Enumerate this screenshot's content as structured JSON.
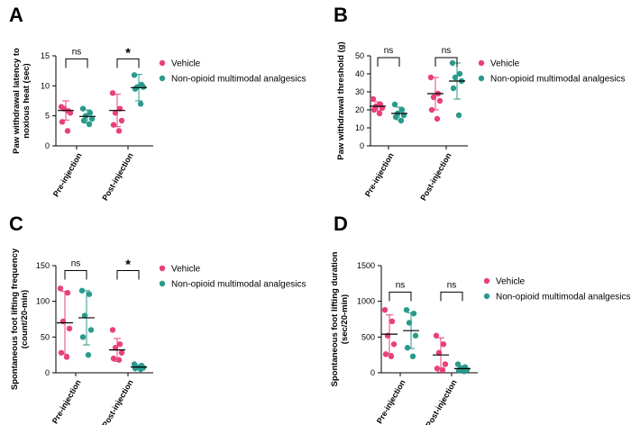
{
  "colors": {
    "vehicle": "#e8407a",
    "nomma": "#2a9a8c"
  },
  "chart_data": [
    {
      "type": "scatter",
      "panel": "A",
      "ylabel": [
        "Paw withdrawal latency to",
        "noxious heat (sec)"
      ],
      "ylim": [
        0,
        15
      ],
      "yticks": [
        0,
        5,
        10,
        15
      ],
      "categories": [
        "Pre-injection",
        "Post-injection"
      ],
      "series": [
        {
          "name": "Vehicle",
          "color": "vehicle",
          "points": [
            [
              6.5,
              5.8,
              6.2,
              5.5,
              4.0,
              2.5
            ],
            [
              8.8,
              6.2,
              5.5,
              4.2,
              3.5,
              2.5
            ]
          ],
          "mean": [
            5.9,
            5.9
          ],
          "sd": [
            1.6,
            2.7
          ]
        },
        {
          "name": "Non-opioid multimodal analgesics",
          "color": "nomma",
          "points": [
            [
              6.2,
              5.5,
              5.0,
              4.5,
              4.2,
              3.6
            ],
            [
              11.8,
              10.2,
              9.8,
              9.8,
              9.5,
              7.0
            ]
          ],
          "mean": [
            4.9,
            9.7
          ],
          "sd": [
            1.1,
            2.2
          ]
        }
      ],
      "comparisons": [
        {
          "group": 0,
          "label": "ns",
          "y": 14.5
        },
        {
          "group": 1,
          "label": "*",
          "y": 14.5
        }
      ]
    },
    {
      "type": "scatter",
      "panel": "B",
      "ylabel": [
        "Paw withdrawal threshold (g)"
      ],
      "ylim": [
        0,
        50
      ],
      "yticks": [
        0,
        10,
        20,
        30,
        40,
        50
      ],
      "categories": [
        "Pre-injection",
        "Post-injection"
      ],
      "series": [
        {
          "name": "Vehicle",
          "color": "vehicle",
          "points": [
            [
              26,
              23,
              22,
              21,
              20,
              18
            ],
            [
              38,
              29,
              27,
              25,
              20,
              15
            ]
          ],
          "mean": [
            22,
            29
          ],
          "sd": [
            2.5,
            9
          ]
        },
        {
          "name": "Non-opioid multimodal analgesics",
          "color": "nomma",
          "points": [
            [
              23,
              20,
              18,
              17,
              16,
              14
            ],
            [
              46,
              40,
              38,
              36,
              32,
              17
            ]
          ],
          "mean": [
            18,
            36
          ],
          "sd": [
            3.5,
            10
          ]
        }
      ],
      "comparisons": [
        {
          "group": 0,
          "label": "ns",
          "y": 49
        },
        {
          "group": 1,
          "label": "ns",
          "y": 49
        }
      ]
    },
    {
      "type": "scatter",
      "panel": "C",
      "ylabel": [
        "Spontaneous foot lifting frequency",
        "(count/20-min)"
      ],
      "ylim": [
        0,
        150
      ],
      "yticks": [
        0,
        50,
        100,
        150
      ],
      "categories": [
        "Pre-injection",
        "Post-injection"
      ],
      "series": [
        {
          "name": "Vehicle",
          "color": "vehicle",
          "points": [
            [
              118,
              112,
              72,
              62,
              28,
              22
            ],
            [
              60,
              40,
              35,
              28,
              20,
              18
            ]
          ],
          "mean": [
            70,
            32
          ],
          "sd": [
            44,
            16
          ]
        },
        {
          "name": "Non-opioid multimodal analgesics",
          "color": "nomma",
          "points": [
            [
              115,
              110,
              80,
              60,
              50,
              25
            ],
            [
              12,
              10,
              8,
              7,
              6,
              5
            ]
          ],
          "mean": [
            77,
            8
          ],
          "sd": [
            38,
            3
          ]
        }
      ],
      "comparisons": [
        {
          "group": 0,
          "label": "ns",
          "y": 143
        },
        {
          "group": 1,
          "label": "*",
          "y": 143
        }
      ]
    },
    {
      "type": "scatter",
      "panel": "D",
      "ylabel": [
        "Spontaneous foot lifting duration",
        "(sec/20-min)"
      ],
      "ylim": [
        0,
        1500
      ],
      "yticks": [
        0,
        500,
        1000,
        1500
      ],
      "categories": [
        "Pre-injection",
        "Post-injection"
      ],
      "series": [
        {
          "name": "Vehicle",
          "color": "vehicle",
          "points": [
            [
              880,
              720,
              520,
              400,
              260,
              230
            ],
            [
              520,
              400,
              280,
              120,
              60,
              40
            ]
          ],
          "mean": [
            540,
            250
          ],
          "sd": [
            270,
            240
          ]
        },
        {
          "name": "Non-opioid multimodal analgesics",
          "color": "nomma",
          "points": [
            [
              880,
              830,
              700,
              520,
              350,
              230
            ],
            [
              120,
              80,
              60,
              40,
              30,
              20
            ]
          ],
          "mean": [
            590,
            58
          ],
          "sd": [
            250,
            40
          ]
        }
      ],
      "comparisons": [
        {
          "group": 0,
          "label": "ns",
          "y": 1130
        },
        {
          "group": 1,
          "label": "ns",
          "y": 1130
        }
      ]
    }
  ]
}
